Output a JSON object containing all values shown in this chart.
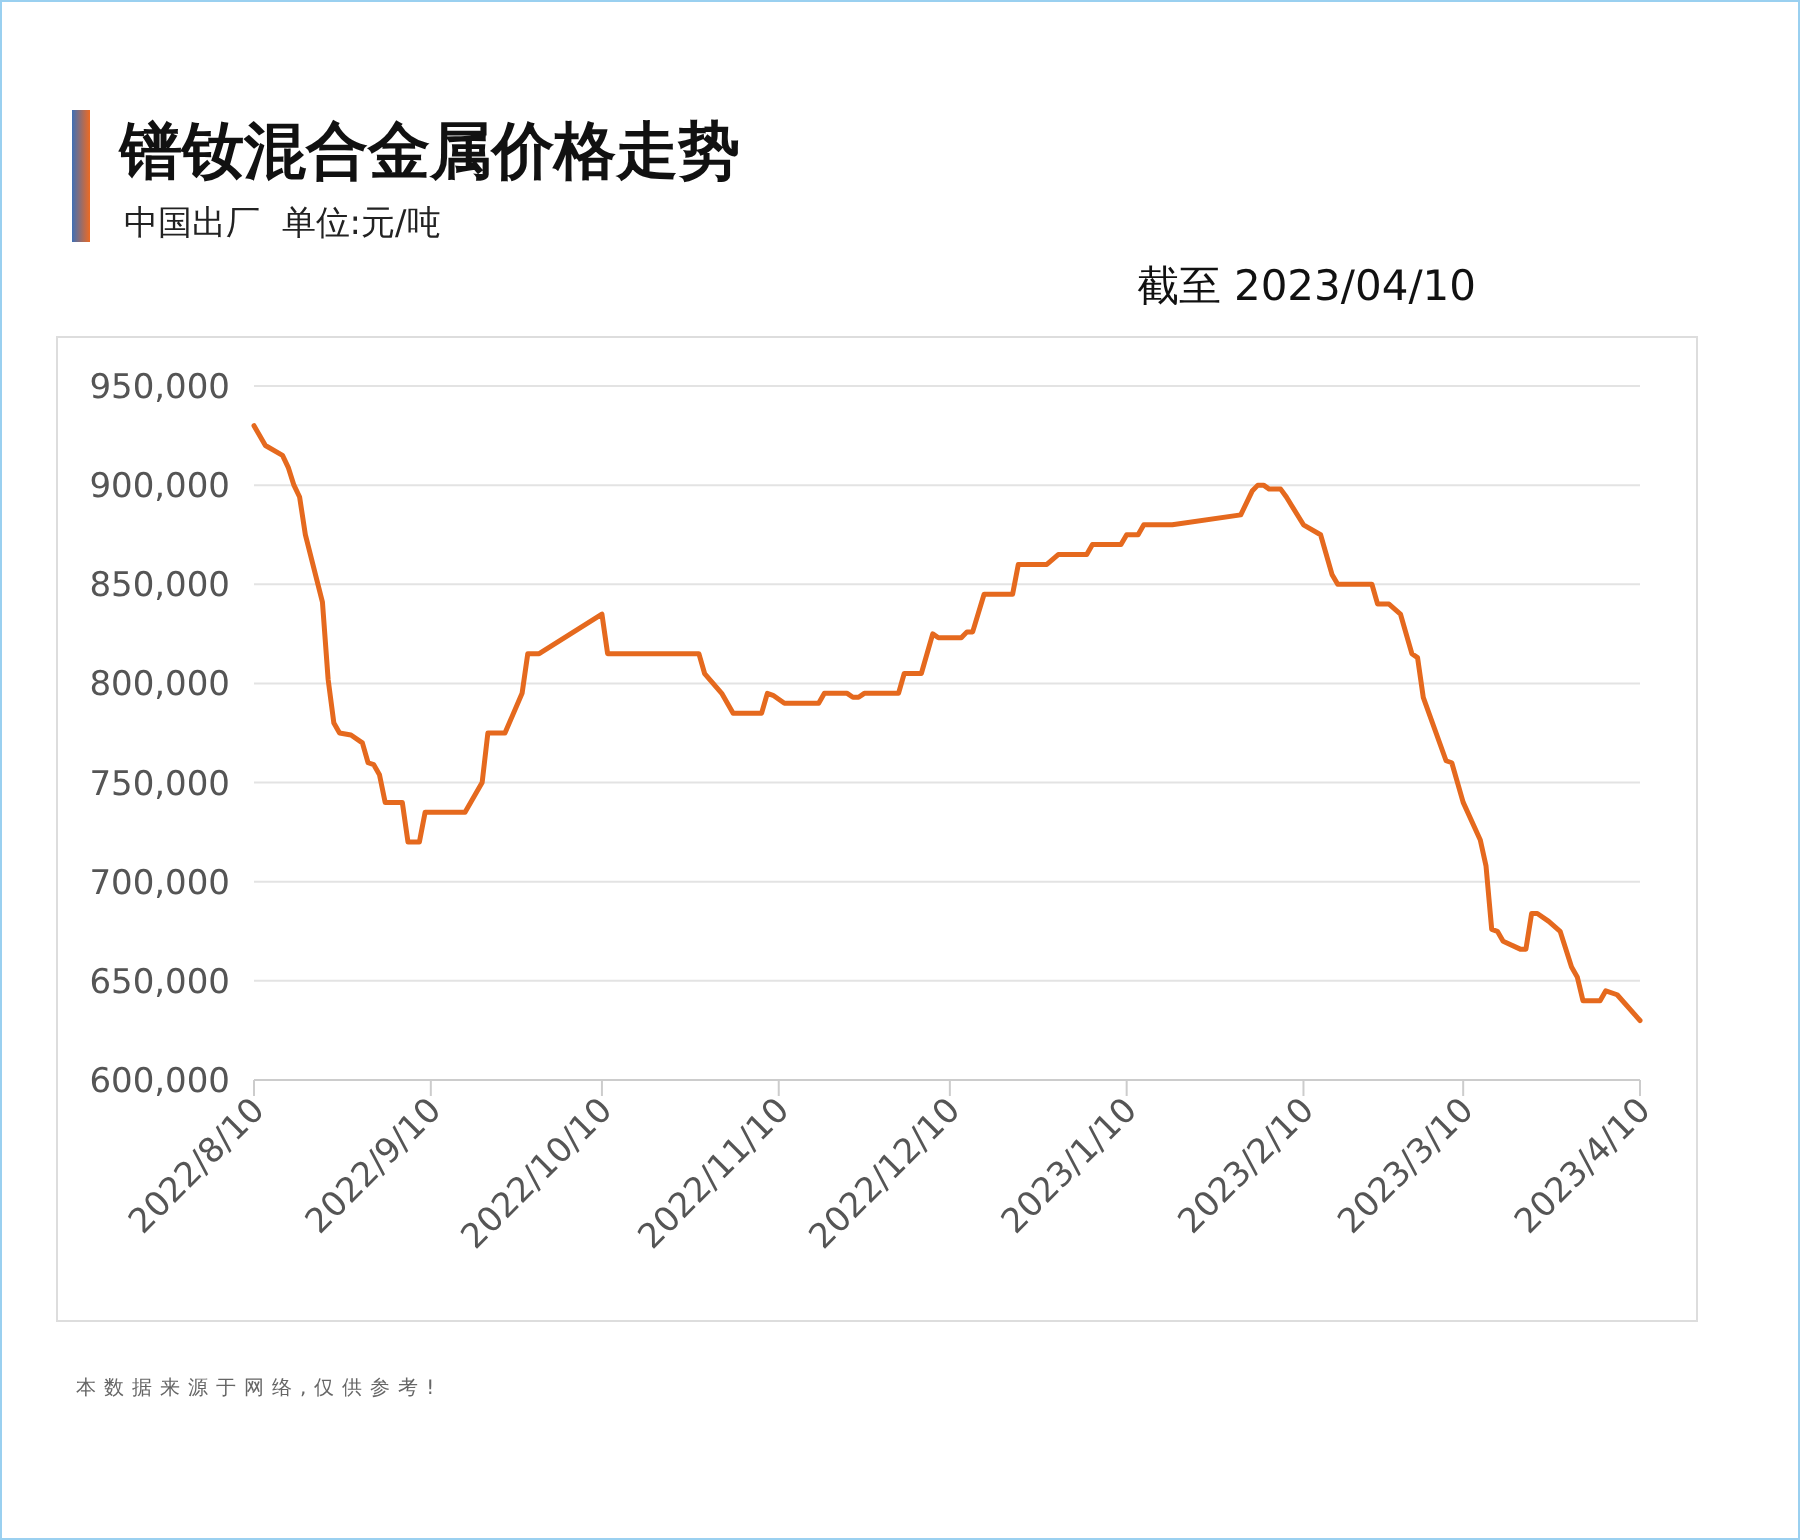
{
  "chart_data": {
    "type": "line",
    "title": "镨钕混合金属价格走势",
    "subtitle": "中国出厂  单位:元/吨",
    "annotations": [
      "截至 2023/04/10",
      "本数据来源于网络,仅供参考!"
    ],
    "x": [
      "2022-08-10",
      "2022-08-12",
      "2022-08-15",
      "2022-08-16",
      "2022-08-17",
      "2022-08-18",
      "2022-08-19",
      "2022-08-22",
      "2022-08-23",
      "2022-08-24",
      "2022-08-25",
      "2022-08-27",
      "2022-08-29",
      "2022-08-30",
      "2022-08-31",
      "2022-09-01",
      "2022-09-02",
      "2022-09-05",
      "2022-09-06",
      "2022-09-08",
      "2022-09-09",
      "2022-09-16",
      "2022-09-19",
      "2022-09-20",
      "2022-09-23",
      "2022-09-26",
      "2022-09-27",
      "2022-09-29",
      "2022-10-10",
      "2022-10-11",
      "2022-10-27",
      "2022-10-28",
      "2022-10-31",
      "2022-11-02",
      "2022-11-07",
      "2022-11-08",
      "2022-11-09",
      "2022-11-11",
      "2022-11-17",
      "2022-11-18",
      "2022-11-22",
      "2022-11-23",
      "2022-11-24",
      "2022-11-25",
      "2022-12-01",
      "2022-12-02",
      "2022-12-05",
      "2022-12-07",
      "2022-12-08",
      "2022-12-12",
      "2022-12-13",
      "2022-12-14",
      "2022-12-16",
      "2022-12-21",
      "2022-12-22",
      "2022-12-27",
      "2022-12-29",
      "2023-01-03",
      "2023-01-04",
      "2023-01-09",
      "2023-01-10",
      "2023-01-12",
      "2023-01-13",
      "2023-01-18",
      "2023-01-30",
      "2023-02-01",
      "2023-02-02",
      "2023-02-03",
      "2023-02-04",
      "2023-02-06",
      "2023-02-07",
      "2023-02-10",
      "2023-02-13",
      "2023-02-15",
      "2023-02-16",
      "2023-02-22",
      "2023-02-23",
      "2023-02-25",
      "2023-02-27",
      "2023-03-01",
      "2023-03-02",
      "2023-03-03",
      "2023-03-07",
      "2023-03-08",
      "2023-03-10",
      "2023-03-13",
      "2023-03-14",
      "2023-03-15",
      "2023-03-16",
      "2023-03-17",
      "2023-03-20",
      "2023-03-21",
      "2023-03-22",
      "2023-03-23",
      "2023-03-25",
      "2023-03-27",
      "2023-03-29",
      "2023-03-30",
      "2023-03-31",
      "2023-04-03",
      "2023-04-04",
      "2023-04-06",
      "2023-04-10"
    ],
    "series": [
      {
        "color": "#e5691e",
        "values": [
          930000,
          920000,
          915000,
          909000,
          900000,
          894000,
          875000,
          841000,
          802000,
          780000,
          775000,
          774000,
          770000,
          760000,
          759000,
          754000,
          740000,
          740000,
          720000,
          720000,
          735000,
          735000,
          750000,
          775000,
          775000,
          795000,
          815000,
          815000,
          835000,
          815000,
          815000,
          805000,
          795000,
          785000,
          785000,
          795000,
          794000,
          790000,
          790000,
          795000,
          795000,
          793000,
          793000,
          795000,
          795000,
          805000,
          805000,
          825000,
          823000,
          823000,
          826000,
          826000,
          845000,
          845000,
          860000,
          860000,
          865000,
          865000,
          870000,
          870000,
          875000,
          875000,
          880000,
          880000,
          885000,
          897000,
          900000,
          900000,
          898000,
          898000,
          894000,
          880000,
          875000,
          855000,
          850000,
          850000,
          840000,
          840000,
          835000,
          815000,
          813000,
          793000,
          761000,
          760000,
          740000,
          721000,
          708000,
          676000,
          675000,
          670000,
          666000,
          666000,
          684000,
          684000,
          680000,
          675000,
          657000,
          652000,
          640000,
          640000,
          645000,
          643000,
          630000
        ]
      }
    ],
    "xlim": [
      "2022-08-10",
      "2023-04-10"
    ],
    "xticks": [
      {
        "value": "2022-08-10",
        "label": "2022/8/10"
      },
      {
        "value": "2022-09-10",
        "label": "2022/9/10"
      },
      {
        "value": "2022-10-10",
        "label": "2022/10/10"
      },
      {
        "value": "2022-11-10",
        "label": "2022/11/10"
      },
      {
        "value": "2022-12-10",
        "label": "2022/12/10"
      },
      {
        "value": "2023-01-10",
        "label": "2023/1/10"
      },
      {
        "value": "2023-02-10",
        "label": "2023/2/10"
      },
      {
        "value": "2023-03-10",
        "label": "2023/3/10"
      },
      {
        "value": "2023-04-10",
        "label": "2023/4/10"
      }
    ],
    "ylim": [
      600000,
      950000
    ],
    "yticks": [
      {
        "value": 600000,
        "label": "600,000"
      },
      {
        "value": 650000,
        "label": "650,000"
      },
      {
        "value": 700000,
        "label": "700,000"
      },
      {
        "value": 750000,
        "label": "750,000"
      },
      {
        "value": 800000,
        "label": "800,000"
      },
      {
        "value": 850000,
        "label": "850,000"
      },
      {
        "value": 900000,
        "label": "900,000"
      },
      {
        "value": 950000,
        "label": "950,000"
      }
    ],
    "grid": "y",
    "marker": "none",
    "line_style": "solid"
  }
}
